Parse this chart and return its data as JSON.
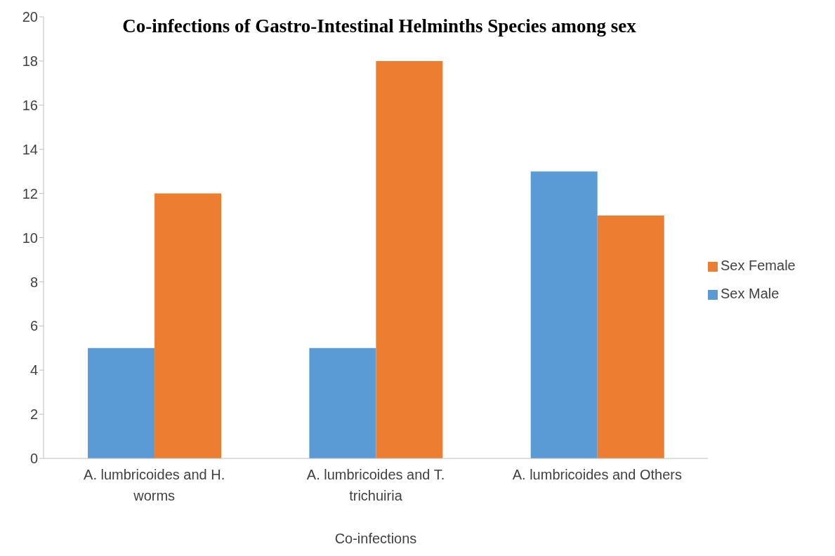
{
  "chart_data": {
    "type": "bar",
    "title": "Co-infections of Gastro-Intestinal Helminths Species among sex",
    "xlabel": "Co-infections",
    "categories": [
      "A. lumbricoides and H. worms",
      "A. lumbricoides and T. trichuiria",
      "A. lumbricoides and Others"
    ],
    "series": [
      {
        "name": "Sex Male",
        "color": "#5b9bd5",
        "values": [
          5,
          5,
          13
        ]
      },
      {
        "name": "Sex Female",
        "color": "#ed7d31",
        "values": [
          12,
          18,
          11
        ]
      }
    ],
    "ylim": [
      0,
      20
    ],
    "yticks": [
      0,
      2,
      4,
      6,
      8,
      10,
      12,
      14,
      16,
      18,
      20
    ],
    "grid": false,
    "legend": "right"
  }
}
